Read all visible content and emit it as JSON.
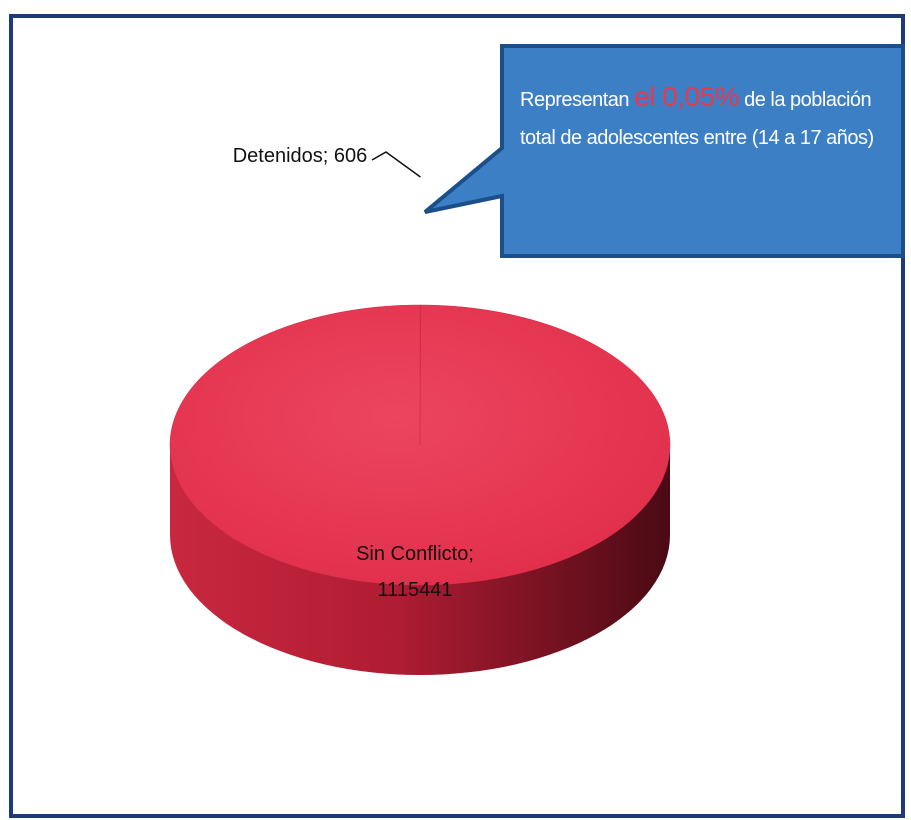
{
  "chart_data": {
    "type": "pie",
    "categories": [
      "Detenidos",
      "Sin Conflicto"
    ],
    "values": [
      606,
      1115441
    ],
    "value_labels": [
      "Detenidos; 606",
      "Sin Conflicto; 1115441"
    ],
    "colors": [
      "#e8384f",
      "#e8384f"
    ],
    "three_d": true,
    "annotation": [
      "Representan",
      "el 0,05%",
      "de la población total de adolescentes entre (14 a 17 años)"
    ]
  }
}
